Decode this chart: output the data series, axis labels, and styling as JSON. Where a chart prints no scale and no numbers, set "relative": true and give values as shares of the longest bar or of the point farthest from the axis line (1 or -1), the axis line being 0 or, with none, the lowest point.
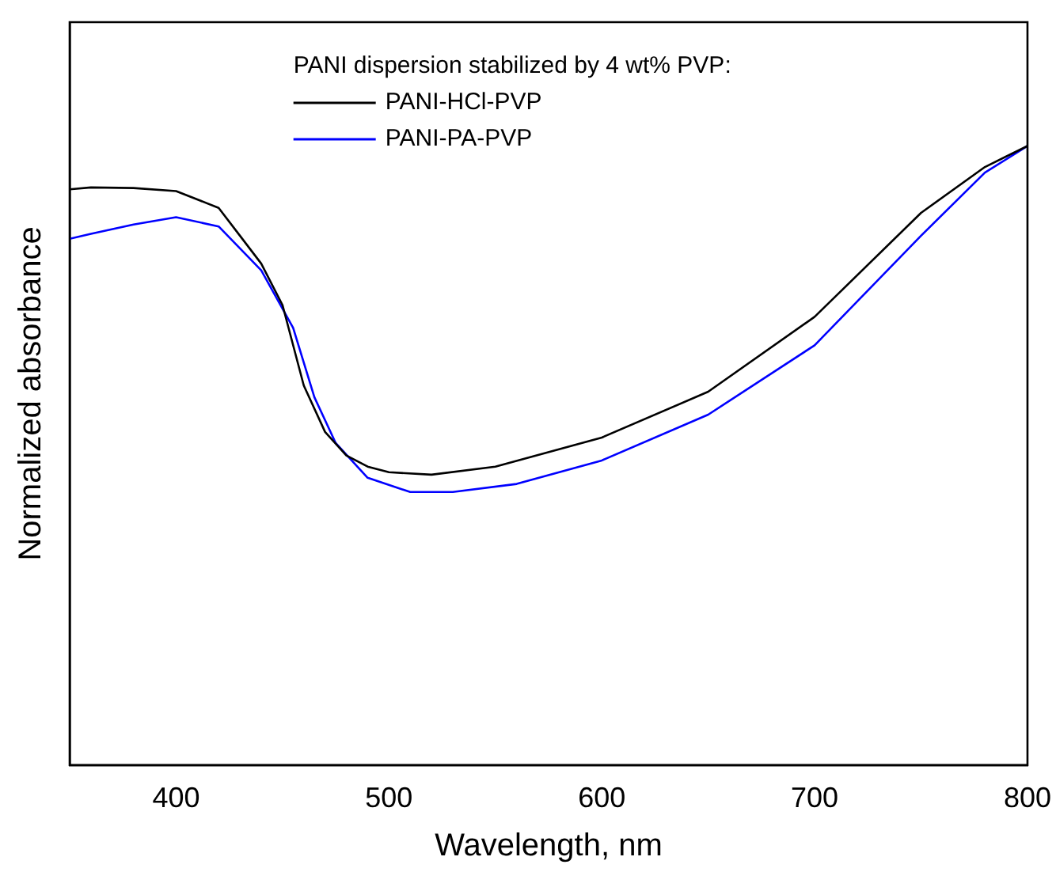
{
  "chart_data": {
    "type": "line",
    "xlabel": "Wavelength, nm",
    "ylabel": "Normalized absorbance",
    "legend_title": "PANI dispersion stabilized by 4 wt% PVP:",
    "relative": true,
    "xlim": [
      350,
      800
    ],
    "xticks": [
      400,
      500,
      600,
      700,
      800
    ],
    "legend": "top",
    "grid": false,
    "marker": "none",
    "line_style": "solid",
    "series": [
      {
        "name": "PANI-HCl-PVP",
        "color": "#000000",
        "x": [
          350,
          360,
          380,
          400,
          420,
          430,
          440,
          450,
          460,
          470,
          480,
          490,
          500,
          520,
          550,
          600,
          650,
          700,
          750,
          780,
          800
        ],
        "values": [
          0.93,
          0.933,
          0.932,
          0.927,
          0.9,
          0.855,
          0.81,
          0.743,
          0.613,
          0.538,
          0.5,
          0.482,
          0.473,
          0.469,
          0.482,
          0.529,
          0.603,
          0.724,
          0.892,
          0.966,
          1
        ]
      },
      {
        "name": "PANI-PA-PVP",
        "color": "#0000ff",
        "x": [
          350,
          360,
          380,
          400,
          420,
          440,
          455,
          465,
          475,
          490,
          510,
          530,
          560,
          600,
          650,
          700,
          750,
          780,
          800
        ],
        "values": [
          0.85,
          0.858,
          0.873,
          0.885,
          0.87,
          0.799,
          0.706,
          0.594,
          0.52,
          0.464,
          0.441,
          0.441,
          0.454,
          0.492,
          0.566,
          0.678,
          0.855,
          0.957,
          1
        ]
      }
    ]
  }
}
